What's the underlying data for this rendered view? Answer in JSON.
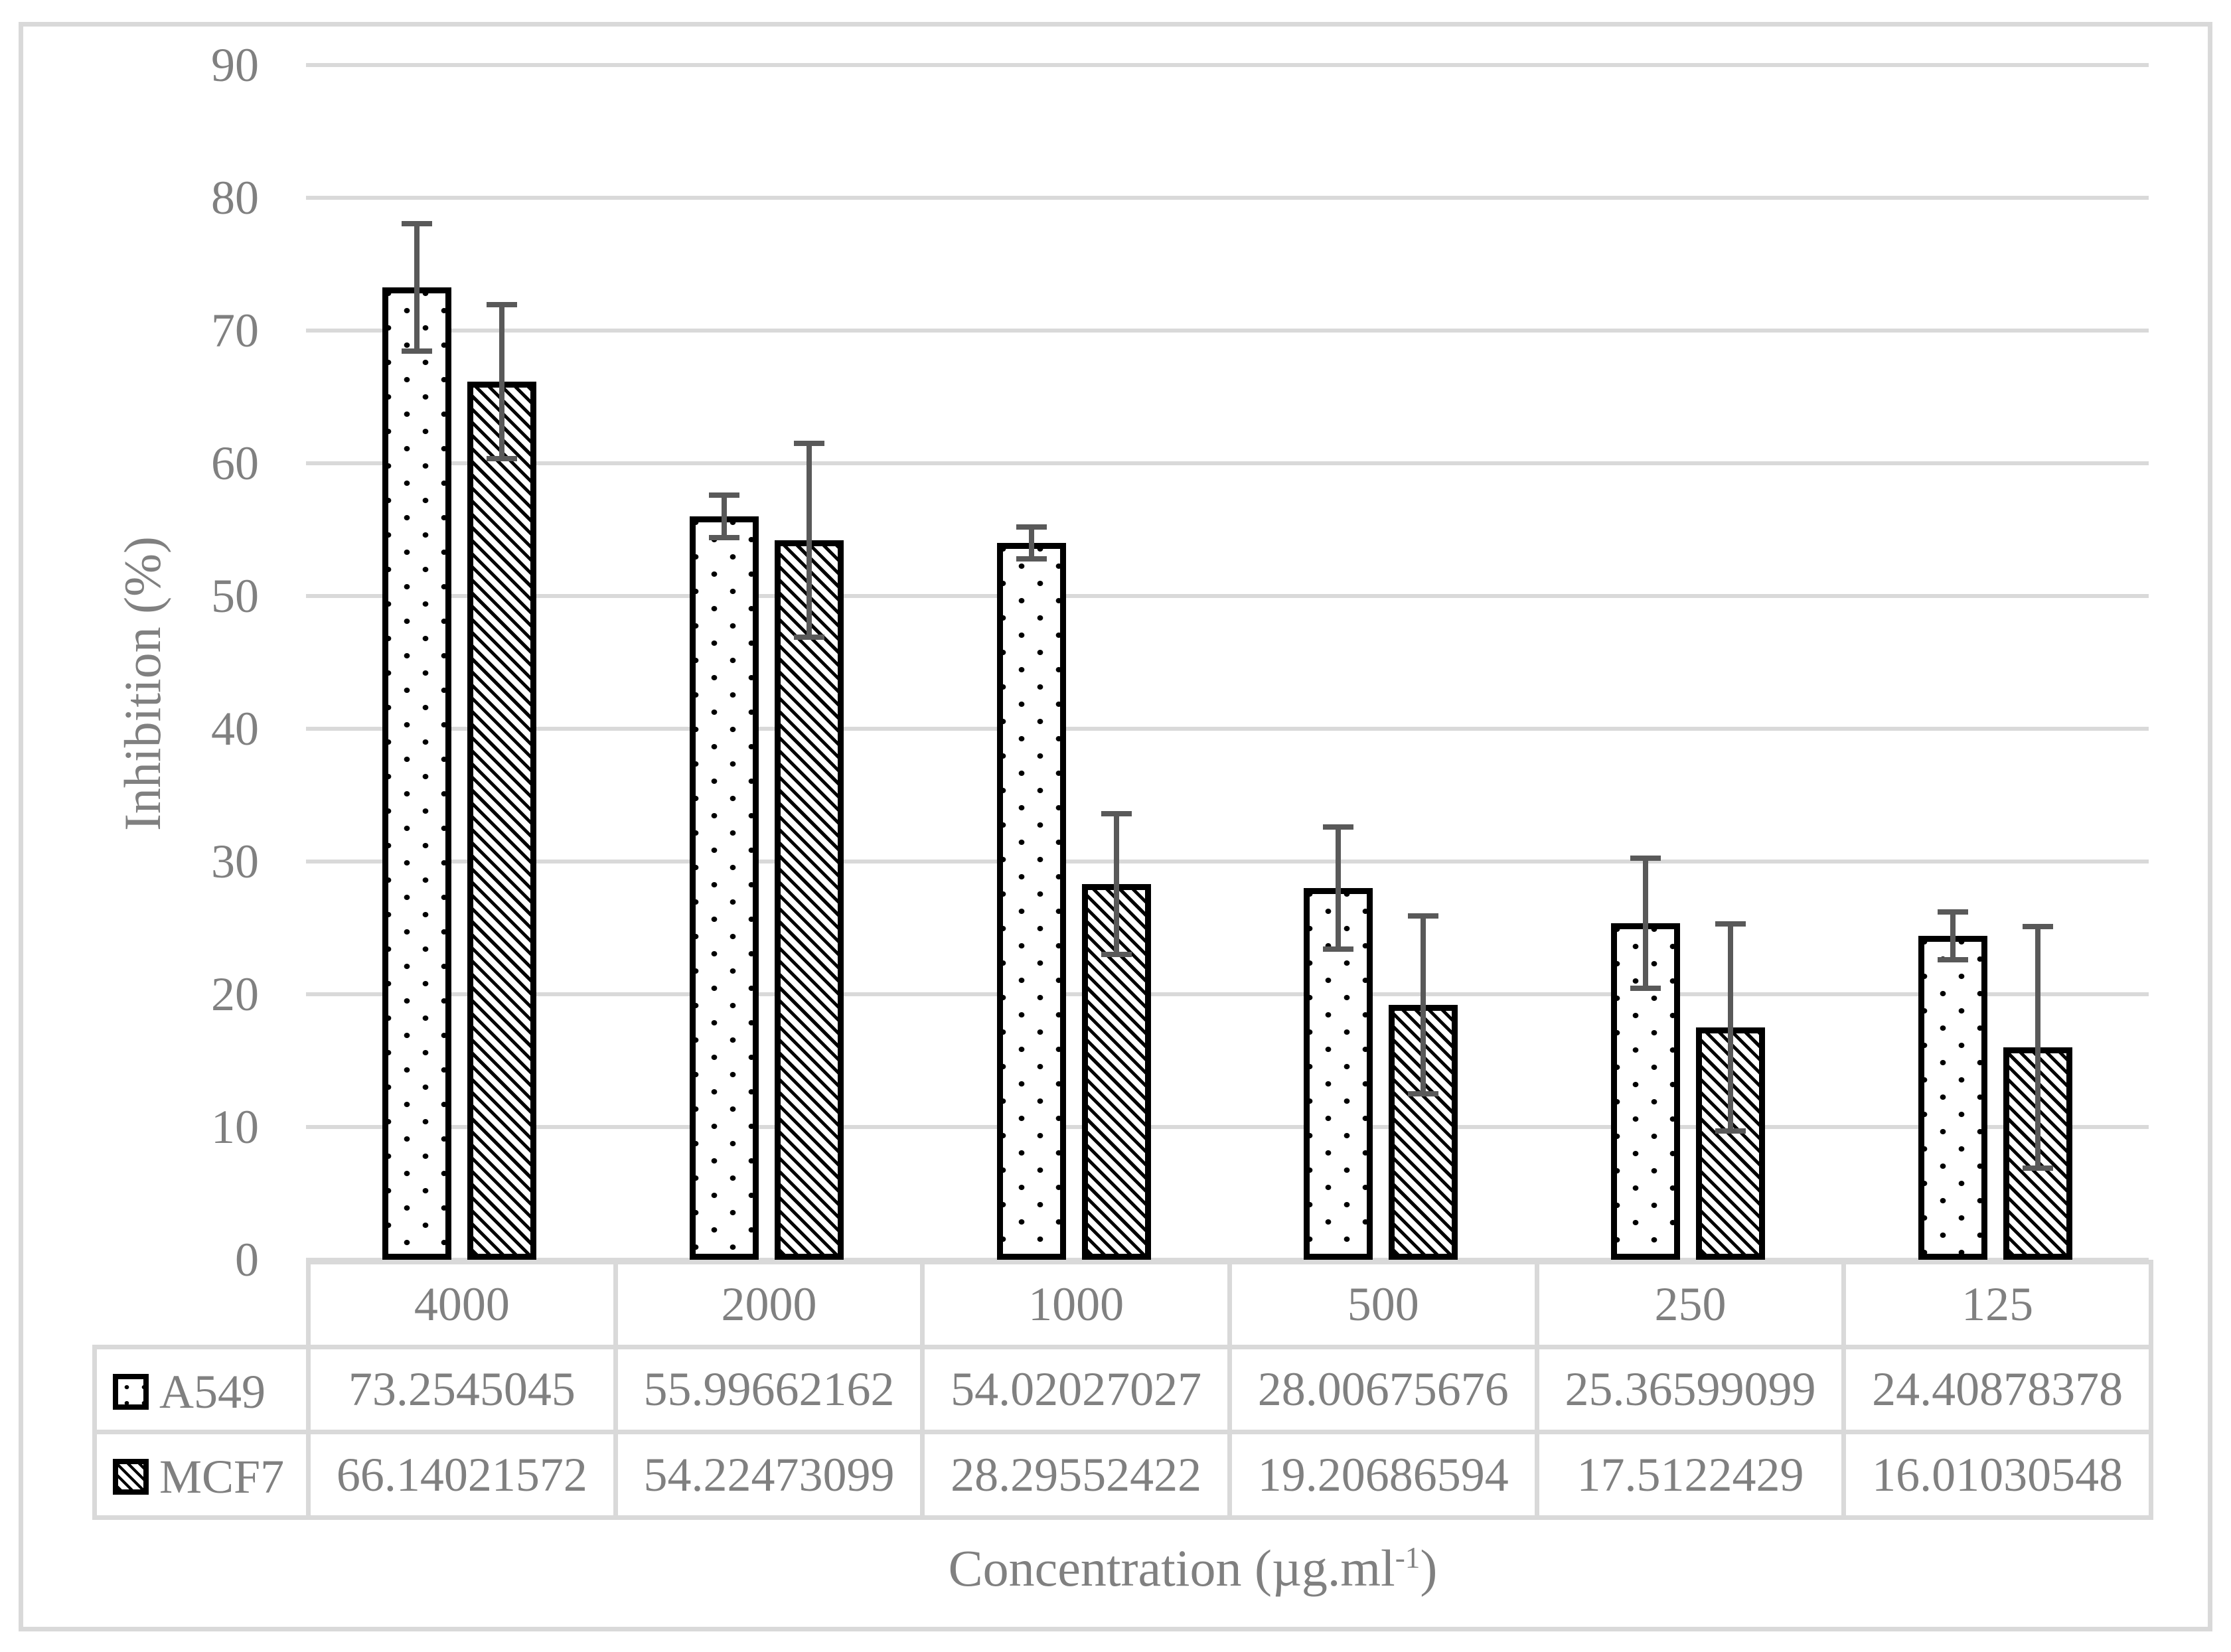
{
  "chart_data": {
    "type": "bar",
    "title": "",
    "ylabel": "Inhibition (%)",
    "xlabel": "Concentration (µg.ml⁻¹)",
    "xlabel_parts": {
      "main": "Concentration (µg.ml",
      "sup": "-1",
      "close": ")"
    },
    "categories": [
      "4000",
      "2000",
      "1000",
      "500",
      "250",
      "125"
    ],
    "yticks": [
      "90",
      "80",
      "70",
      "60",
      "50",
      "40",
      "30",
      "20",
      "10",
      "0"
    ],
    "ylim": [
      0,
      90
    ],
    "ytick_step": 10,
    "grid": true,
    "legend_position": "table-left-column",
    "series": [
      {
        "name": "A549",
        "pattern": "dotted",
        "values": [
          73.2545045,
          55.99662162,
          54.02027027,
          28.00675676,
          25.36599099,
          24.40878378
        ],
        "display_values": [
          "73.2545045",
          "55.99662162",
          "54.02027027",
          "28.00675676",
          "25.36599099",
          "24.40878378"
        ],
        "errors": [
          5.0,
          1.8,
          1.4,
          4.8,
          5.1,
          2.0
        ]
      },
      {
        "name": "MCF7",
        "pattern": "diagonal-hatch",
        "values": [
          66.14021572,
          54.22473099,
          28.29552422,
          19.20686594,
          17.5122429,
          16.01030548
        ],
        "display_values": [
          "66.14021572",
          "54.22473099",
          "28.29552422",
          "19.20686594",
          "17.5122429",
          "16.01030548"
        ],
        "errors": [
          6.0,
          7.5,
          5.5,
          6.9,
          8.0,
          9.3
        ]
      }
    ]
  },
  "colors": {
    "text": "#808080",
    "gridline": "#d9d9d9",
    "table_border": "#d9d9d9",
    "error_bar": "#595959",
    "bar_outline": "#000000",
    "background": "#ffffff"
  }
}
